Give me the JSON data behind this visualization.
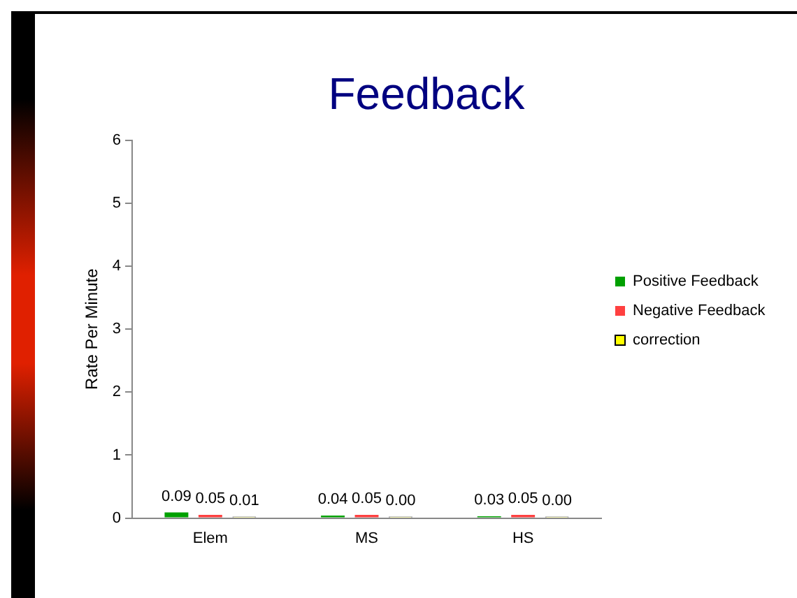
{
  "chart_data": {
    "type": "bar",
    "title": "Feedback",
    "ylabel": "Rate Per Minute",
    "categories": [
      "Elem",
      "MS",
      "HS"
    ],
    "series": [
      {
        "name": "Positive Feedback",
        "color": "#00a000",
        "values": [
          0.09,
          0.04,
          0.03
        ],
        "value_labels": [
          "0.09",
          "0.04",
          "0.03"
        ]
      },
      {
        "name": "Negative Feedback",
        "color": "#ff4040",
        "values": [
          0.05,
          0.05,
          0.05
        ],
        "value_labels": [
          "0.05",
          "0.05",
          "0.05"
        ]
      },
      {
        "name": "correction",
        "color": "#ffff00",
        "values": [
          0.01,
          0,
          0
        ],
        "value_labels": [
          "0.01",
          "0.00",
          "0.00"
        ]
      }
    ],
    "ylim": [
      0,
      6
    ],
    "yticks": [
      0,
      1,
      2,
      3,
      4,
      5,
      6
    ],
    "grid": false,
    "legend": "right"
  }
}
